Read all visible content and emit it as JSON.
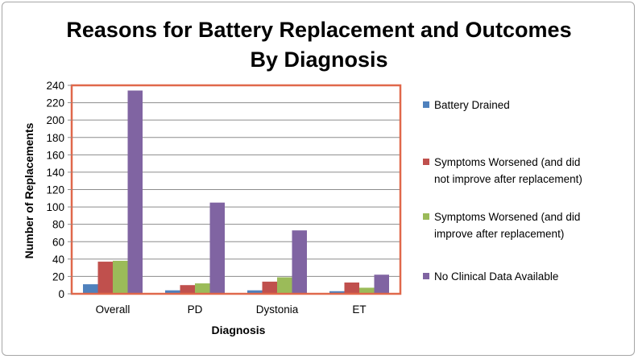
{
  "chart_data": {
    "type": "bar",
    "title_lines": [
      "Reasons for Battery Replacement and Outcomes",
      "By Diagnosis"
    ],
    "xlabel": "Diagnosis",
    "ylabel": "Number of Replacements",
    "ylim": [
      0,
      240
    ],
    "yticks": [
      "0",
      "20",
      "40",
      "60",
      "80",
      "100",
      "120",
      "140",
      "160",
      "180",
      "200",
      "220",
      "240"
    ],
    "categories": [
      "Overall",
      "PD",
      "Dystonia",
      "ET"
    ],
    "grid": true,
    "legend_position": "right",
    "series": [
      {
        "name": "Battery Drained",
        "legend_lines": [
          "Battery Drained"
        ],
        "color": "#4f81bd",
        "values": [
          11,
          4,
          4,
          3
        ]
      },
      {
        "name": "Symptoms Worsened (and did not improve after replacement)",
        "legend_lines": [
          "Symptoms Worsened (and did",
          "not improve after replacement)"
        ],
        "color": "#c0504d",
        "values": [
          37,
          10,
          14,
          13
        ]
      },
      {
        "name": "Symptoms Worsened (and did improve after replacement)",
        "legend_lines": [
          "Symptoms Worsened (and did",
          "improve after replacement)"
        ],
        "color": "#9bbb59",
        "values": [
          38,
          12,
          19,
          7
        ]
      },
      {
        "name": "No Clinical Data Available",
        "legend_lines": [
          "No Clinical Data Available"
        ],
        "color": "#8064a2",
        "values": [
          234,
          105,
          73,
          22
        ]
      }
    ],
    "plot_border_color": "#e0684b"
  }
}
